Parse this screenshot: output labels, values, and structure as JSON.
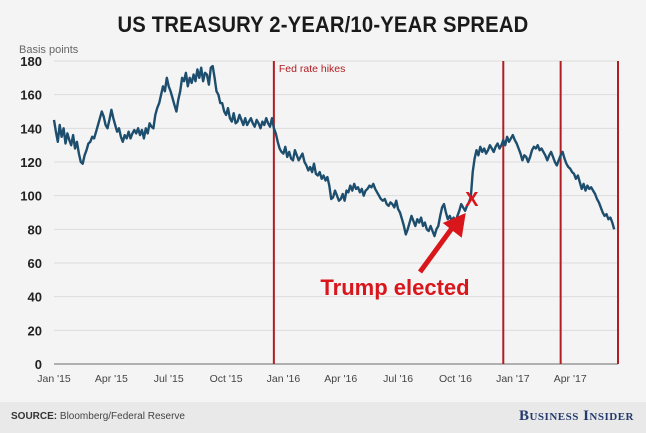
{
  "chart_data": {
    "type": "line",
    "title": "US TREASURY 2-YEAR/10-YEAR SPREAD",
    "ylabel": "Basis points",
    "xlabel": "",
    "ylim": [
      0,
      180
    ],
    "yticks": [
      0,
      20,
      40,
      60,
      80,
      100,
      120,
      140,
      160,
      180
    ],
    "xticks": [
      {
        "label": "Jan '15",
        "m": 0
      },
      {
        "label": "Apr '15",
        "m": 3
      },
      {
        "label": "Jul '15",
        "m": 6
      },
      {
        "label": "Oct '15",
        "m": 9
      },
      {
        "label": "Jan '16",
        "m": 12
      },
      {
        "label": "Apr '16",
        "m": 15
      },
      {
        "label": "Jul '16",
        "m": 18
      },
      {
        "label": "Oct '16",
        "m": 21
      },
      {
        "label": "Jan '17",
        "m": 24
      },
      {
        "label": "Apr '17",
        "m": 27
      }
    ],
    "xlim_months": [
      0,
      29.5
    ],
    "grid": true,
    "series": [
      {
        "name": "2Y/10Y spread",
        "color": "#1d4e6e",
        "points": [
          [
            0.0,
            145
          ],
          [
            0.1,
            138
          ],
          [
            0.2,
            132
          ],
          [
            0.3,
            142
          ],
          [
            0.4,
            135
          ],
          [
            0.5,
            140
          ],
          [
            0.6,
            131
          ],
          [
            0.7,
            137
          ],
          [
            0.8,
            133
          ],
          [
            0.9,
            130
          ],
          [
            1.0,
            136
          ],
          [
            1.1,
            128
          ],
          [
            1.2,
            132
          ],
          [
            1.3,
            125
          ],
          [
            1.4,
            120
          ],
          [
            1.5,
            119
          ],
          [
            1.6,
            124
          ],
          [
            1.7,
            127
          ],
          [
            1.8,
            131
          ],
          [
            1.9,
            132
          ],
          [
            2.0,
            135
          ],
          [
            2.1,
            134
          ],
          [
            2.2,
            138
          ],
          [
            2.3,
            142
          ],
          [
            2.4,
            146
          ],
          [
            2.5,
            150
          ],
          [
            2.6,
            147
          ],
          [
            2.7,
            142
          ],
          [
            2.8,
            140
          ],
          [
            2.9,
            145
          ],
          [
            3.0,
            151
          ],
          [
            3.1,
            146
          ],
          [
            3.2,
            142
          ],
          [
            3.3,
            138
          ],
          [
            3.4,
            140
          ],
          [
            3.5,
            135
          ],
          [
            3.6,
            132
          ],
          [
            3.7,
            136
          ],
          [
            3.8,
            134
          ],
          [
            3.9,
            138
          ],
          [
            4.0,
            134
          ],
          [
            4.1,
            137
          ],
          [
            4.2,
            139
          ],
          [
            4.3,
            137
          ],
          [
            4.4,
            140
          ],
          [
            4.5,
            136
          ],
          [
            4.6,
            139
          ],
          [
            4.7,
            134
          ],
          [
            4.8,
            140
          ],
          [
            4.9,
            137
          ],
          [
            5.0,
            143
          ],
          [
            5.1,
            141
          ],
          [
            5.2,
            140
          ],
          [
            5.3,
            148
          ],
          [
            5.4,
            152
          ],
          [
            5.5,
            155
          ],
          [
            5.6,
            160
          ],
          [
            5.7,
            165
          ],
          [
            5.8,
            162
          ],
          [
            5.9,
            170
          ],
          [
            6.0,
            165
          ],
          [
            6.1,
            162
          ],
          [
            6.2,
            158
          ],
          [
            6.3,
            154
          ],
          [
            6.4,
            150
          ],
          [
            6.5,
            157
          ],
          [
            6.6,
            162
          ],
          [
            6.7,
            170
          ],
          [
            6.8,
            168
          ],
          [
            6.9,
            173
          ],
          [
            7.0,
            165
          ],
          [
            7.1,
            170
          ],
          [
            7.2,
            167
          ],
          [
            7.3,
            172
          ],
          [
            7.4,
            168
          ],
          [
            7.5,
            175
          ],
          [
            7.6,
            170
          ],
          [
            7.7,
            176
          ],
          [
            7.8,
            168
          ],
          [
            7.9,
            173
          ],
          [
            8.0,
            172
          ],
          [
            8.1,
            166
          ],
          [
            8.2,
            176
          ],
          [
            8.3,
            177
          ],
          [
            8.4,
            170
          ],
          [
            8.5,
            162
          ],
          [
            8.6,
            160
          ],
          [
            8.7,
            155
          ],
          [
            8.8,
            155
          ],
          [
            8.9,
            150
          ],
          [
            9.0,
            148
          ],
          [
            9.1,
            152
          ],
          [
            9.2,
            146
          ],
          [
            9.3,
            144
          ],
          [
            9.4,
            149
          ],
          [
            9.5,
            143
          ],
          [
            9.6,
            144
          ],
          [
            9.7,
            148
          ],
          [
            9.8,
            145
          ],
          [
            9.9,
            142
          ],
          [
            10.0,
            146
          ],
          [
            10.1,
            142
          ],
          [
            10.2,
            144
          ],
          [
            10.3,
            146
          ],
          [
            10.4,
            143
          ],
          [
            10.5,
            141
          ],
          [
            10.6,
            145
          ],
          [
            10.7,
            143
          ],
          [
            10.8,
            140
          ],
          [
            10.9,
            144
          ],
          [
            11.0,
            142
          ],
          [
            11.1,
            146
          ],
          [
            11.2,
            143
          ],
          [
            11.3,
            141
          ],
          [
            11.4,
            146
          ],
          [
            11.5,
            140
          ],
          [
            11.6,
            137
          ],
          [
            11.7,
            132
          ],
          [
            11.8,
            128
          ],
          [
            11.9,
            126
          ],
          [
            12.0,
            125
          ],
          [
            12.1,
            129
          ],
          [
            12.2,
            123
          ],
          [
            12.3,
            126
          ],
          [
            12.4,
            122
          ],
          [
            12.5,
            121
          ],
          [
            12.6,
            127
          ],
          [
            12.7,
            124
          ],
          [
            12.8,
            121
          ],
          [
            12.9,
            123
          ],
          [
            13.0,
            125
          ],
          [
            13.1,
            120
          ],
          [
            13.2,
            118
          ],
          [
            13.3,
            115
          ],
          [
            13.4,
            117
          ],
          [
            13.5,
            114
          ],
          [
            13.6,
            119
          ],
          [
            13.7,
            113
          ],
          [
            13.8,
            112
          ],
          [
            13.9,
            114
          ],
          [
            14.0,
            110
          ],
          [
            14.1,
            112
          ],
          [
            14.2,
            109
          ],
          [
            14.3,
            111
          ],
          [
            14.4,
            106
          ],
          [
            14.5,
            98
          ],
          [
            14.6,
            99
          ],
          [
            14.7,
            103
          ],
          [
            14.8,
            100
          ],
          [
            14.9,
            97
          ],
          [
            15.0,
            98
          ],
          [
            15.1,
            101
          ],
          [
            15.2,
            97
          ],
          [
            15.3,
            103
          ],
          [
            15.4,
            102
          ],
          [
            15.5,
            106
          ],
          [
            15.6,
            103
          ],
          [
            15.7,
            107
          ],
          [
            15.8,
            104
          ],
          [
            15.9,
            105
          ],
          [
            16.0,
            102
          ],
          [
            16.1,
            104
          ],
          [
            16.2,
            100
          ],
          [
            16.3,
            103
          ],
          [
            16.4,
            104
          ],
          [
            16.5,
            106
          ],
          [
            16.6,
            105
          ],
          [
            16.7,
            107
          ],
          [
            16.8,
            104
          ],
          [
            16.9,
            102
          ],
          [
            17.0,
            100
          ],
          [
            17.1,
            98
          ],
          [
            17.2,
            97
          ],
          [
            17.3,
            98
          ],
          [
            17.4,
            95
          ],
          [
            17.5,
            94
          ],
          [
            17.6,
            96
          ],
          [
            17.7,
            95
          ],
          [
            17.8,
            93
          ],
          [
            17.9,
            97
          ],
          [
            18.0,
            92
          ],
          [
            18.1,
            90
          ],
          [
            18.2,
            86
          ],
          [
            18.3,
            82
          ],
          [
            18.4,
            77
          ],
          [
            18.5,
            80
          ],
          [
            18.6,
            84
          ],
          [
            18.7,
            88
          ],
          [
            18.8,
            85
          ],
          [
            18.9,
            82
          ],
          [
            19.0,
            86
          ],
          [
            19.1,
            84
          ],
          [
            19.2,
            87
          ],
          [
            19.3,
            82
          ],
          [
            19.4,
            84
          ],
          [
            19.5,
            80
          ],
          [
            19.6,
            79
          ],
          [
            19.7,
            82
          ],
          [
            19.8,
            79
          ],
          [
            19.9,
            76
          ],
          [
            20.0,
            80
          ],
          [
            20.1,
            82
          ],
          [
            20.2,
            88
          ],
          [
            20.3,
            93
          ],
          [
            20.4,
            95
          ],
          [
            20.5,
            90
          ],
          [
            20.6,
            86
          ],
          [
            20.7,
            88
          ],
          [
            20.8,
            85
          ],
          [
            20.9,
            87
          ],
          [
            21.0,
            84
          ],
          [
            21.1,
            88
          ],
          [
            21.2,
            91
          ],
          [
            21.3,
            95
          ],
          [
            21.4,
            93
          ],
          [
            21.5,
            91
          ],
          [
            21.6,
            94
          ],
          [
            21.7,
            96
          ],
          [
            21.8,
            99
          ],
          [
            21.9,
            114
          ],
          [
            22.0,
            122
          ],
          [
            22.1,
            127
          ],
          [
            22.2,
            124
          ],
          [
            22.3,
            129
          ],
          [
            22.4,
            126
          ],
          [
            22.5,
            128
          ],
          [
            22.6,
            125
          ],
          [
            22.7,
            127
          ],
          [
            22.8,
            130
          ],
          [
            22.9,
            128
          ],
          [
            23.0,
            126
          ],
          [
            23.1,
            129
          ],
          [
            23.2,
            131
          ],
          [
            23.3,
            128
          ],
          [
            23.4,
            130
          ],
          [
            23.5,
            133
          ],
          [
            23.6,
            130
          ],
          [
            23.7,
            135
          ],
          [
            23.8,
            132
          ],
          [
            23.9,
            134
          ],
          [
            24.0,
            136
          ],
          [
            24.1,
            133
          ],
          [
            24.2,
            131
          ],
          [
            24.3,
            128
          ],
          [
            24.4,
            125
          ],
          [
            24.5,
            121
          ],
          [
            24.6,
            124
          ],
          [
            24.7,
            123
          ],
          [
            24.8,
            120
          ],
          [
            24.9,
            123
          ],
          [
            25.0,
            127
          ],
          [
            25.1,
            129
          ],
          [
            25.2,
            128
          ],
          [
            25.3,
            130
          ],
          [
            25.4,
            127
          ],
          [
            25.5,
            128
          ],
          [
            25.6,
            126
          ],
          [
            25.7,
            124
          ],
          [
            25.8,
            121
          ],
          [
            25.9,
            124
          ],
          [
            26.0,
            126
          ],
          [
            26.1,
            123
          ],
          [
            26.2,
            120
          ],
          [
            26.3,
            118
          ],
          [
            26.4,
            121
          ],
          [
            26.5,
            124
          ],
          [
            26.6,
            126
          ],
          [
            26.7,
            122
          ],
          [
            26.8,
            119
          ],
          [
            26.9,
            117
          ],
          [
            27.0,
            116
          ],
          [
            27.1,
            114
          ],
          [
            27.2,
            113
          ],
          [
            27.3,
            110
          ],
          [
            27.4,
            112
          ],
          [
            27.5,
            108
          ],
          [
            27.6,
            104
          ],
          [
            27.7,
            107
          ],
          [
            27.8,
            103
          ],
          [
            27.9,
            106
          ],
          [
            28.0,
            104
          ],
          [
            28.1,
            105
          ],
          [
            28.2,
            103
          ],
          [
            28.3,
            101
          ],
          [
            28.4,
            98
          ],
          [
            28.5,
            96
          ],
          [
            28.6,
            93
          ],
          [
            28.7,
            90
          ],
          [
            28.8,
            88
          ],
          [
            28.9,
            89
          ],
          [
            29.0,
            86
          ],
          [
            29.1,
            87
          ],
          [
            29.2,
            84
          ],
          [
            29.3,
            80
          ]
        ]
      }
    ],
    "vertical_lines": [
      {
        "m": 11.5,
        "color": "#b01e23",
        "label": "Fed rate hikes"
      },
      {
        "m": 23.5,
        "color": "#b01e23",
        "label": ""
      },
      {
        "m": 26.5,
        "color": "#b01e23",
        "label": ""
      },
      {
        "m": 29.5,
        "color": "#b01e23",
        "label": ""
      }
    ],
    "annotations": [
      {
        "text": "Trump elected",
        "marker": "X",
        "at_m": 21.85,
        "at_value": 98,
        "color": "#d8161b"
      }
    ]
  },
  "footer": {
    "source_label": "SOURCE:",
    "source_text": "Bloomberg/Federal Reserve",
    "brand": "Business Insider"
  }
}
